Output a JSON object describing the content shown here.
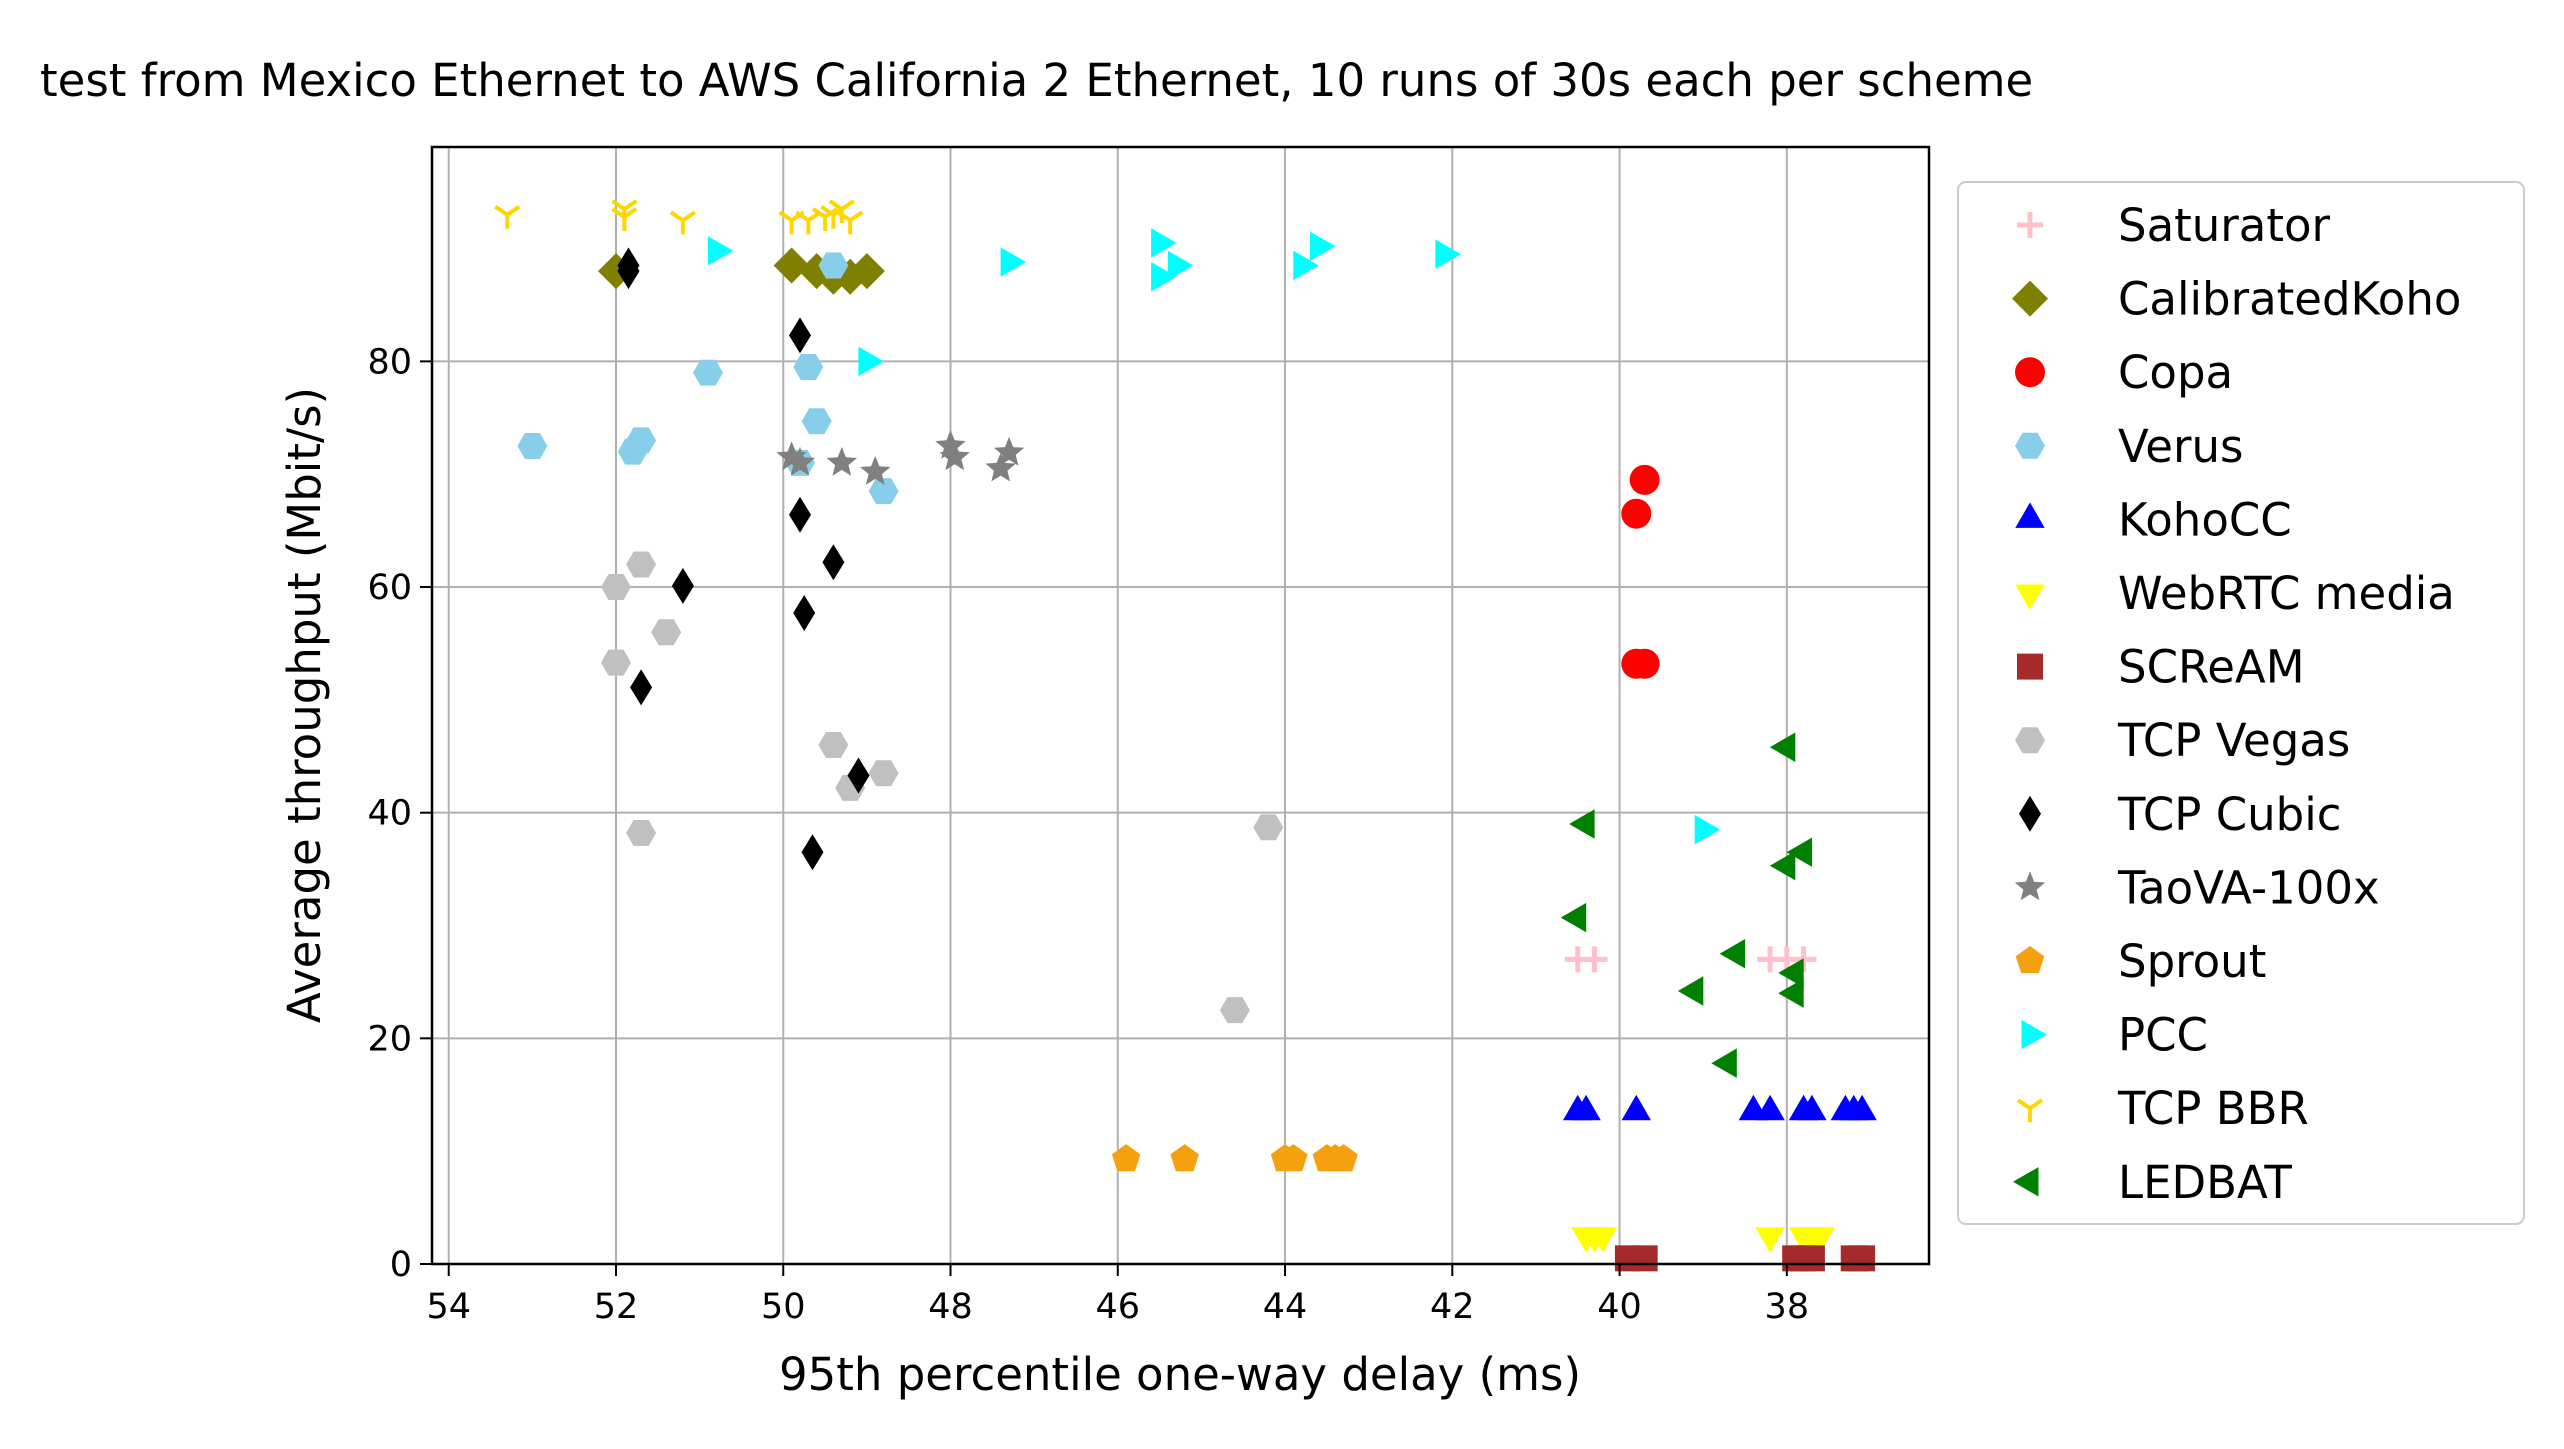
{
  "chart_data": {
    "type": "scatter",
    "title": "test from Mexico Ethernet to AWS California 2 Ethernet, 10 runs of 30s each per scheme",
    "xlabel": "95th percentile one-way delay (ms)",
    "ylabel": "Average throughput (Mbit/s)",
    "xlim": [
      54.2,
      36.3
    ],
    "ylim": [
      0,
      99
    ],
    "x_inverted": true,
    "grid": true,
    "legend_position": "outside-right",
    "xticks": [
      54,
      52,
      50,
      48,
      46,
      44,
      42,
      40,
      38
    ],
    "yticks": [
      0,
      20,
      40,
      60,
      80
    ],
    "series": [
      {
        "name": "Saturator",
        "marker": "plus",
        "color": "#ffc0cb",
        "points": [
          [
            40.5,
            27.0
          ],
          [
            40.3,
            27.0
          ],
          [
            38.2,
            27.0
          ],
          [
            38.0,
            27.0
          ],
          [
            37.8,
            27.0
          ]
        ]
      },
      {
        "name": "CalibratedKoho",
        "marker": "diamond",
        "color": "#808000",
        "points": [
          [
            52.0,
            88.0
          ],
          [
            49.9,
            88.5
          ],
          [
            49.6,
            88.0
          ],
          [
            49.4,
            87.5
          ],
          [
            49.2,
            87.5
          ],
          [
            49.0,
            88.0
          ]
        ]
      },
      {
        "name": "Copa",
        "marker": "circle",
        "color": "#ff0000",
        "points": [
          [
            39.7,
            69.5
          ],
          [
            39.8,
            66.5
          ],
          [
            39.8,
            53.2
          ],
          [
            39.7,
            53.2
          ]
        ]
      },
      {
        "name": "Verus",
        "marker": "hexagon",
        "color": "#87ceeb",
        "points": [
          [
            49.4,
            88.5
          ],
          [
            50.9,
            79.0
          ],
          [
            49.7,
            79.5
          ],
          [
            49.6,
            74.7
          ],
          [
            53.0,
            72.5
          ],
          [
            51.7,
            73.0
          ],
          [
            51.8,
            72.0
          ],
          [
            49.8,
            71.0
          ],
          [
            48.8,
            68.5
          ]
        ]
      },
      {
        "name": "KohoCC",
        "marker": "triangle-up",
        "color": "#0000ff",
        "points": [
          [
            40.5,
            13.5
          ],
          [
            40.4,
            13.5
          ],
          [
            39.8,
            13.5
          ],
          [
            38.4,
            13.5
          ],
          [
            38.2,
            13.5
          ],
          [
            37.8,
            13.5
          ],
          [
            37.7,
            13.5
          ],
          [
            37.3,
            13.5
          ],
          [
            37.2,
            13.5
          ],
          [
            37.1,
            13.5
          ]
        ]
      },
      {
        "name": "WebRTC media",
        "marker": "triangle-down",
        "color": "#ffff00",
        "points": [
          [
            40.4,
            2.5
          ],
          [
            40.3,
            2.5
          ],
          [
            40.2,
            2.5
          ],
          [
            38.2,
            2.5
          ],
          [
            37.8,
            2.5
          ],
          [
            37.7,
            2.5
          ],
          [
            37.6,
            2.5
          ]
        ]
      },
      {
        "name": "SCReAM",
        "marker": "square",
        "color": "#a52a2a",
        "points": [
          [
            39.9,
            0.5
          ],
          [
            39.7,
            0.5
          ],
          [
            37.9,
            0.5
          ],
          [
            37.8,
            0.5
          ],
          [
            37.7,
            0.5
          ],
          [
            37.2,
            0.5
          ],
          [
            37.1,
            0.5
          ]
        ]
      },
      {
        "name": "TCP Vegas",
        "marker": "hexagon",
        "color": "#c0c0c0",
        "points": [
          [
            52.0,
            60.0
          ],
          [
            51.7,
            62.0
          ],
          [
            51.4,
            56.0
          ],
          [
            52.0,
            53.3
          ],
          [
            51.7,
            38.2
          ],
          [
            49.4,
            46.0
          ],
          [
            49.2,
            42.2
          ],
          [
            48.8,
            43.5
          ],
          [
            44.2,
            38.7
          ],
          [
            44.6,
            22.5
          ]
        ]
      },
      {
        "name": "TCP Cubic",
        "marker": "diamond-thin",
        "color": "#000000",
        "points": [
          [
            51.85,
            88.0
          ],
          [
            51.85,
            88.5
          ],
          [
            49.8,
            82.3
          ],
          [
            51.2,
            60.1
          ],
          [
            49.8,
            66.4
          ],
          [
            49.4,
            62.2
          ],
          [
            49.75,
            57.7
          ],
          [
            51.7,
            51.1
          ],
          [
            49.1,
            43.3
          ],
          [
            49.65,
            36.5
          ]
        ]
      },
      {
        "name": "TaoVA-100x",
        "marker": "star",
        "color": "#808080",
        "points": [
          [
            49.9,
            71.5
          ],
          [
            49.8,
            71.0
          ],
          [
            49.3,
            71.0
          ],
          [
            48.9,
            70.2
          ],
          [
            48.0,
            72.5
          ],
          [
            47.95,
            71.5
          ],
          [
            47.4,
            70.5
          ],
          [
            47.3,
            71.9
          ]
        ]
      },
      {
        "name": "Sprout",
        "marker": "pentagon",
        "color": "#f5a00f",
        "points": [
          [
            45.9,
            9.3
          ],
          [
            45.2,
            9.3
          ],
          [
            44.0,
            9.3
          ],
          [
            43.9,
            9.3
          ],
          [
            43.5,
            9.3
          ],
          [
            43.4,
            9.3
          ],
          [
            43.3,
            9.3
          ]
        ]
      },
      {
        "name": "PCC",
        "marker": "triangle-right",
        "color": "#00ffff",
        "points": [
          [
            50.8,
            89.8
          ],
          [
            49.0,
            80.0
          ],
          [
            47.3,
            88.8
          ],
          [
            45.5,
            90.5
          ],
          [
            45.3,
            88.5
          ],
          [
            45.5,
            87.5
          ],
          [
            43.8,
            88.5
          ],
          [
            43.6,
            90.2
          ],
          [
            42.1,
            89.5
          ],
          [
            39.0,
            38.5
          ]
        ]
      },
      {
        "name": "TCP BBR",
        "marker": "tri-down",
        "color": "#ffd700",
        "points": [
          [
            53.3,
            93.0
          ],
          [
            51.9,
            93.5
          ],
          [
            51.9,
            92.8
          ],
          [
            51.2,
            92.5
          ],
          [
            49.9,
            92.5
          ],
          [
            49.7,
            92.5
          ],
          [
            49.4,
            93.0
          ],
          [
            49.3,
            93.5
          ],
          [
            49.2,
            92.5
          ],
          [
            49.5,
            92.8
          ]
        ]
      },
      {
        "name": "LEDBAT",
        "marker": "triangle-left",
        "color": "#008000",
        "points": [
          [
            38.0,
            45.8
          ],
          [
            40.4,
            39.0
          ],
          [
            37.8,
            36.5
          ],
          [
            38.0,
            35.3
          ],
          [
            40.5,
            30.7
          ],
          [
            38.6,
            27.5
          ],
          [
            37.9,
            25.8
          ],
          [
            37.9,
            24.0
          ],
          [
            39.1,
            24.2
          ],
          [
            38.7,
            17.8
          ]
        ]
      }
    ]
  }
}
